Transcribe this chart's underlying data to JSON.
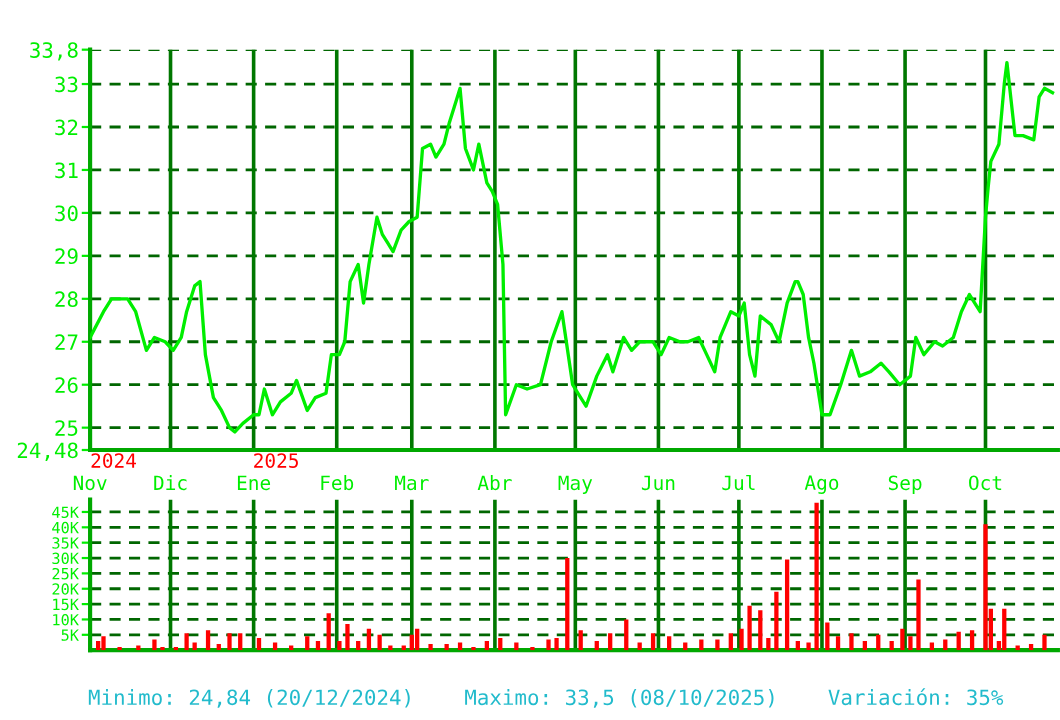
{
  "chart_data": [
    {
      "type": "line",
      "x": [
        "2024-11-01",
        "2024-11-06",
        "2024-11-09",
        "2024-11-15",
        "2024-11-18",
        "2024-11-22",
        "2024-11-25",
        "2024-11-29",
        "2024-12-02",
        "2024-12-05",
        "2024-12-07",
        "2024-12-10",
        "2024-12-12",
        "2024-12-14",
        "2024-12-17",
        "2024-12-20",
        "2024-12-23",
        "2024-12-25",
        "2024-12-28",
        "2025-01-01",
        "2025-01-03",
        "2025-01-05",
        "2025-01-08",
        "2025-01-11",
        "2025-01-15",
        "2025-01-17",
        "2025-01-21",
        "2025-01-24",
        "2025-01-28",
        "2025-01-30",
        "2025-02-02",
        "2025-02-04",
        "2025-02-06",
        "2025-02-09",
        "2025-02-11",
        "2025-02-13",
        "2025-02-16",
        "2025-02-18",
        "2025-02-20",
        "2025-02-22",
        "2025-02-25",
        "2025-02-28",
        "2025-03-03",
        "2025-03-05",
        "2025-03-08",
        "2025-03-10",
        "2025-03-13",
        "2025-03-15",
        "2025-03-18",
        "2025-03-19",
        "2025-03-21",
        "2025-03-24",
        "2025-03-26",
        "2025-03-29",
        "2025-03-31",
        "2025-04-02",
        "2025-04-04",
        "2025-04-05",
        "2025-04-09",
        "2025-04-13",
        "2025-04-18",
        "2025-04-22",
        "2025-04-26",
        "2025-04-30",
        "2025-05-02",
        "2025-05-05",
        "2025-05-09",
        "2025-05-13",
        "2025-05-15",
        "2025-05-19",
        "2025-05-22",
        "2025-05-25",
        "2025-05-30",
        "2025-06-02",
        "2025-06-05",
        "2025-06-09",
        "2025-06-12",
        "2025-06-16",
        "2025-06-19",
        "2025-06-22",
        "2025-06-24",
        "2025-06-28",
        "2025-07-01",
        "2025-07-03",
        "2025-07-05",
        "2025-07-07",
        "2025-07-09",
        "2025-07-13",
        "2025-07-16",
        "2025-07-19",
        "2025-07-22",
        "2025-07-23",
        "2025-07-25",
        "2025-07-27",
        "2025-07-29",
        "2025-08-01",
        "2025-08-04",
        "2025-08-08",
        "2025-08-12",
        "2025-08-15",
        "2025-08-19",
        "2025-08-23",
        "2025-08-26",
        "2025-08-30",
        "2025-09-03",
        "2025-09-05",
        "2025-09-08",
        "2025-09-12",
        "2025-09-15",
        "2025-09-19",
        "2025-09-22",
        "2025-09-25",
        "2025-09-29",
        "2025-10-01",
        "2025-10-02",
        "2025-10-03",
        "2025-10-06",
        "2025-10-08",
        "2025-10-09",
        "2025-10-12",
        "2025-10-15",
        "2025-10-19",
        "2025-10-21",
        "2025-10-23",
        "2025-10-26"
      ],
      "series": [
        {
          "color": "#00ee00",
          "values": [
            27.1,
            27.7,
            28.0,
            28.0,
            27.7,
            26.8,
            27.1,
            27.0,
            26.8,
            27.1,
            27.7,
            28.3,
            28.4,
            26.7,
            25.7,
            25.4,
            25.0,
            24.9,
            25.1,
            25.3,
            25.3,
            25.9,
            25.3,
            25.6,
            25.8,
            26.1,
            25.4,
            25.7,
            25.8,
            26.7,
            26.7,
            27.0,
            28.4,
            28.8,
            27.9,
            28.8,
            29.9,
            29.5,
            29.3,
            29.1,
            29.6,
            29.8,
            29.9,
            31.5,
            31.6,
            31.3,
            31.6,
            32.1,
            32.7,
            32.9,
            31.5,
            31.0,
            31.6,
            30.7,
            30.5,
            30.2,
            28.8,
            25.3,
            26.0,
            25.9,
            26.0,
            27.0,
            27.7,
            26.0,
            25.8,
            25.5,
            26.2,
            26.7,
            26.3,
            27.1,
            26.8,
            27.0,
            27.0,
            26.7,
            27.1,
            27.0,
            27.0,
            27.1,
            26.7,
            26.3,
            27.1,
            27.7,
            27.6,
            27.9,
            26.7,
            26.2,
            27.6,
            27.4,
            27.0,
            27.9,
            28.4,
            28.4,
            28.1,
            27.1,
            26.5,
            25.3,
            25.3,
            26.0,
            26.8,
            26.2,
            26.3,
            26.5,
            26.3,
            26.0,
            26.2,
            27.1,
            26.7,
            27.0,
            26.9,
            27.1,
            27.7,
            28.1,
            27.7,
            29.9,
            30.6,
            31.2,
            31.6,
            33.0,
            33.5,
            31.8,
            31.8,
            31.7,
            32.7,
            32.9,
            32.8
          ]
        }
      ],
      "ylim": [
        24.48,
        33.8
      ],
      "yticks": [
        {
          "value": 24.48,
          "label": "24,48"
        },
        25,
        26,
        27,
        28,
        29,
        30,
        31,
        32,
        33,
        {
          "value": 33.8,
          "label": "33,8"
        }
      ],
      "xlim": [
        "2024-11-01",
        "2025-10-28"
      ],
      "xticks": [
        {
          "value": "2024-11-01",
          "label": "Nov"
        },
        {
          "value": "2024-12-01",
          "label": "Dic"
        },
        {
          "value": "2025-01-01",
          "label": "Ene"
        },
        {
          "value": "2025-02-01",
          "label": "Feb"
        },
        {
          "value": "2025-03-01",
          "label": "Mar"
        },
        {
          "value": "2025-04-01",
          "label": "Abr"
        },
        {
          "value": "2025-05-01",
          "label": "May"
        },
        {
          "value": "2025-06-01",
          "label": "Jun"
        },
        {
          "value": "2025-07-01",
          "label": "Jul"
        },
        {
          "value": "2025-08-01",
          "label": "Ago"
        },
        {
          "value": "2025-09-01",
          "label": "Sep"
        },
        {
          "value": "2025-10-01",
          "label": "Oct"
        }
      ],
      "annotations": [
        "2024",
        "2025"
      ],
      "grid": true,
      "marker": "none",
      "line_style": "solid"
    },
    {
      "type": "bar",
      "x": [
        "2024-11-04",
        "2024-11-06",
        "2024-11-12",
        "2024-11-19",
        "2024-11-25",
        "2024-11-28",
        "2024-12-03",
        "2024-12-07",
        "2024-12-10",
        "2024-12-15",
        "2024-12-19",
        "2024-12-23",
        "2024-12-27",
        "2025-01-03",
        "2025-01-09",
        "2025-01-15",
        "2025-01-21",
        "2025-01-25",
        "2025-01-29",
        "2025-02-02",
        "2025-02-05",
        "2025-02-09",
        "2025-02-13",
        "2025-02-17",
        "2025-02-21",
        "2025-02-26",
        "2025-03-01",
        "2025-03-03",
        "2025-03-08",
        "2025-03-14",
        "2025-03-19",
        "2025-03-24",
        "2025-03-29",
        "2025-04-03",
        "2025-04-09",
        "2025-04-15",
        "2025-04-21",
        "2025-04-24",
        "2025-04-28",
        "2025-05-03",
        "2025-05-09",
        "2025-05-14",
        "2025-05-20",
        "2025-05-25",
        "2025-05-30",
        "2025-06-05",
        "2025-06-11",
        "2025-06-17",
        "2025-06-23",
        "2025-06-28",
        "2025-07-02",
        "2025-07-05",
        "2025-07-09",
        "2025-07-12",
        "2025-07-15",
        "2025-07-19",
        "2025-07-23",
        "2025-07-27",
        "2025-07-30",
        "2025-08-03",
        "2025-08-07",
        "2025-08-12",
        "2025-08-17",
        "2025-08-22",
        "2025-08-27",
        "2025-08-31",
        "2025-09-03",
        "2025-09-06",
        "2025-09-11",
        "2025-09-16",
        "2025-09-21",
        "2025-09-26",
        "2025-10-01",
        "2025-10-03",
        "2025-10-06",
        "2025-10-08",
        "2025-10-13",
        "2025-10-18",
        "2025-10-23"
      ],
      "series": [
        {
          "color": "#ff0000",
          "values": [
            3000,
            4500,
            1000,
            1500,
            3500,
            1000,
            1000,
            5500,
            2500,
            6500,
            2000,
            5500,
            5500,
            4000,
            2500,
            1500,
            4500,
            3000,
            12000,
            3000,
            8500,
            3000,
            7000,
            5000,
            1500,
            1500,
            5000,
            7000,
            2000,
            2000,
            2500,
            1000,
            3000,
            4000,
            2500,
            1000,
            3500,
            4000,
            30000,
            6500,
            3000,
            5500,
            10000,
            2500,
            5500,
            4500,
            2500,
            3500,
            3500,
            5500,
            7000,
            14500,
            13000,
            4000,
            19000,
            29500,
            3000,
            2500,
            48000,
            9000,
            4500,
            5500,
            3000,
            5000,
            3000,
            7000,
            4500,
            23000,
            2500,
            3500,
            6000,
            6500,
            41000,
            13500,
            3000,
            13500,
            1500,
            2000,
            5000
          ]
        }
      ],
      "ylim": [
        0,
        49000
      ],
      "yticks": [
        {
          "value": 5000,
          "label": "5K"
        },
        {
          "value": 10000,
          "label": "10K"
        },
        {
          "value": 15000,
          "label": "15K"
        },
        {
          "value": 20000,
          "label": "20K"
        },
        {
          "value": 25000,
          "label": "25K"
        },
        {
          "value": 30000,
          "label": "30K"
        },
        {
          "value": 35000,
          "label": "35K"
        },
        {
          "value": 40000,
          "label": "40K"
        },
        {
          "value": 45000,
          "label": "45K"
        }
      ],
      "xlim": [
        "2024-11-01",
        "2025-10-28"
      ],
      "xticks": [
        {
          "value": "2024-11-01",
          "label": null
        },
        {
          "value": "2024-12-01",
          "label": null
        },
        {
          "value": "2025-01-01",
          "label": null
        },
        {
          "value": "2025-02-01",
          "label": null
        },
        {
          "value": "2025-03-01",
          "label": null
        },
        {
          "value": "2025-04-01",
          "label": null
        },
        {
          "value": "2025-05-01",
          "label": null
        },
        {
          "value": "2025-06-01",
          "label": null
        },
        {
          "value": "2025-07-01",
          "label": null
        },
        {
          "value": "2025-08-01",
          "label": null
        },
        {
          "value": "2025-09-01",
          "label": null
        },
        {
          "value": "2025-10-01",
          "label": null
        }
      ],
      "tick_labels": "y",
      "grid": true,
      "annotations": [
        "Minimo: 24,84 (20/12/2024)",
        "Maximo: 33,5 (08/10/2025)",
        "Variación: 35%"
      ]
    }
  ]
}
